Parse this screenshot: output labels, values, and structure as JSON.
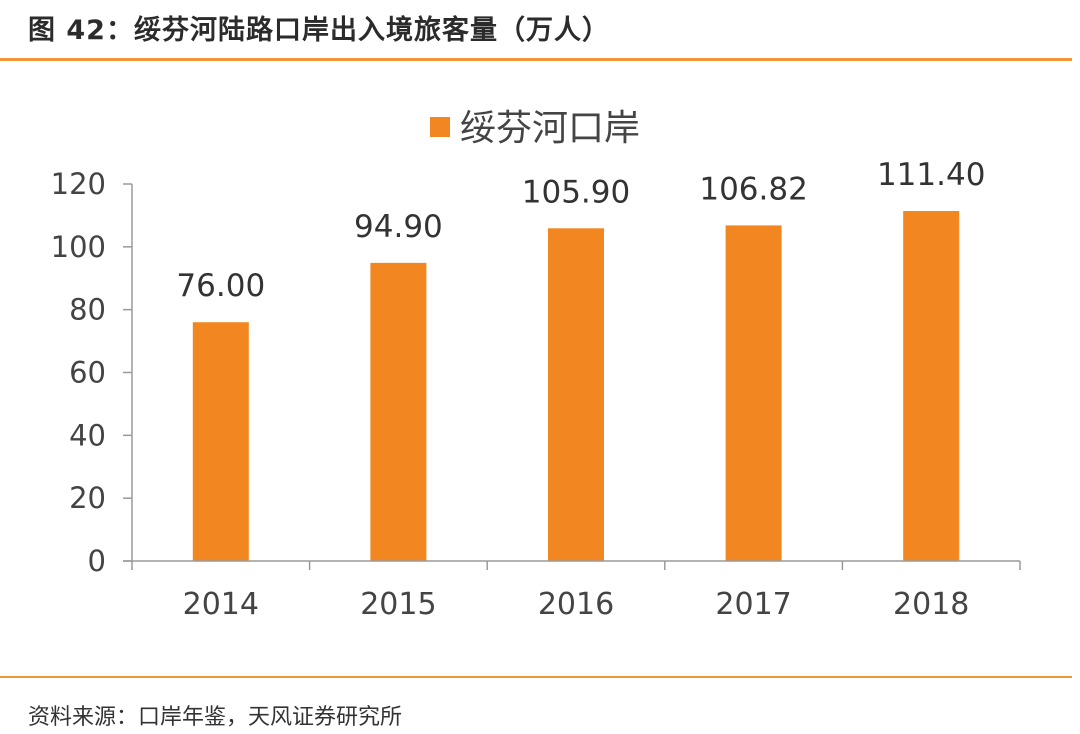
{
  "figure": {
    "title": "图 42：绥芬河陆路口岸出入境旅客量（万人）",
    "source": "资料来源：口岸年鉴，天风证券研究所",
    "accent_color": "#f0963a"
  },
  "chart_data": {
    "type": "bar",
    "categories": [
      "2014",
      "2015",
      "2016",
      "2017",
      "2018"
    ],
    "series": [
      {
        "name": "绥芬河口岸",
        "values": [
          76.0,
          94.9,
          105.9,
          106.82,
          111.4
        ],
        "labels": [
          "76.00",
          "94.90",
          "105.90",
          "106.82",
          "111.40"
        ],
        "color": "#f28721"
      }
    ],
    "ylim": [
      0,
      120
    ],
    "yticks": [
      0,
      20,
      40,
      60,
      80,
      100,
      120
    ],
    "legend_position": "top-center",
    "grid": false
  }
}
